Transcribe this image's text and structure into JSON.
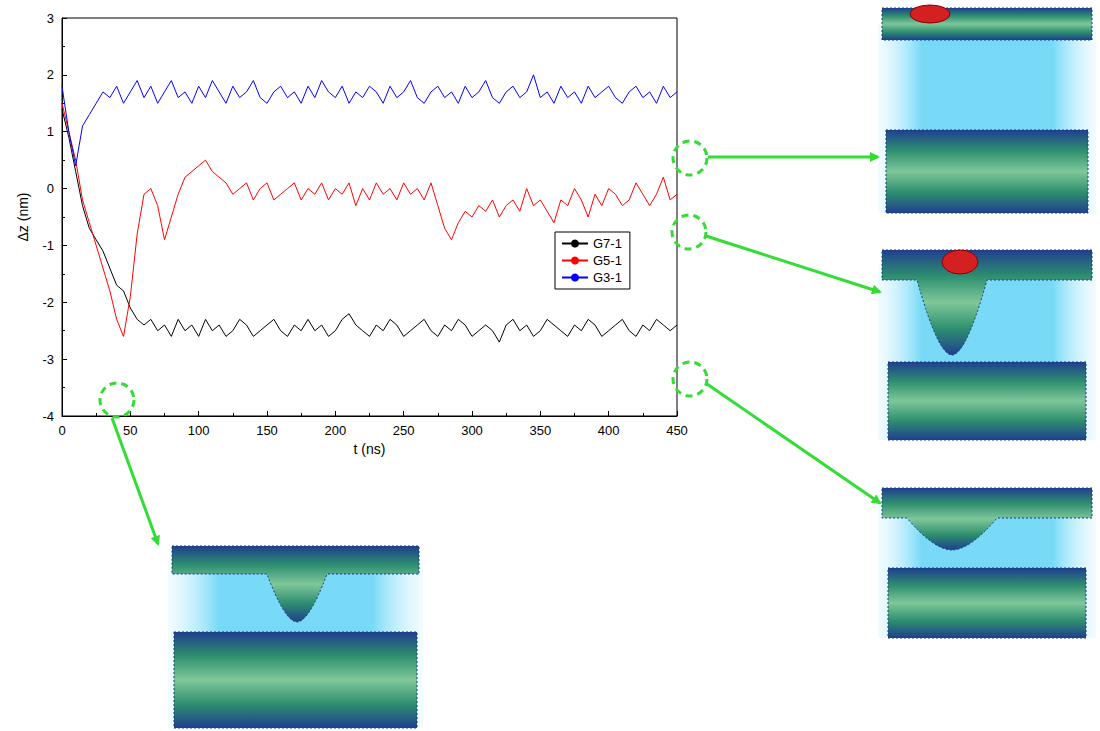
{
  "chart_data": {
    "type": "line",
    "x_label": "t (ns)",
    "y_label": "Δz (nm)",
    "xlim": [
      0,
      450
    ],
    "xticks": [
      0,
      50,
      100,
      150,
      200,
      250,
      300,
      350,
      400,
      450
    ],
    "ylim": [
      -4,
      3
    ],
    "yticks": [
      -4,
      -3,
      -2,
      -1,
      0,
      1,
      2,
      3
    ],
    "grid": false,
    "legend": "right",
    "x": [
      0,
      5,
      10,
      15,
      20,
      25,
      30,
      35,
      40,
      45,
      50,
      55,
      60,
      65,
      70,
      75,
      80,
      85,
      90,
      95,
      100,
      105,
      110,
      115,
      120,
      125,
      130,
      135,
      140,
      145,
      150,
      155,
      160,
      165,
      170,
      175,
      180,
      185,
      190,
      195,
      200,
      205,
      210,
      215,
      220,
      225,
      230,
      235,
      240,
      245,
      250,
      255,
      260,
      265,
      270,
      275,
      280,
      285,
      290,
      295,
      300,
      305,
      310,
      315,
      320,
      325,
      330,
      335,
      340,
      345,
      350,
      355,
      360,
      365,
      370,
      375,
      380,
      385,
      390,
      395,
      400,
      405,
      410,
      415,
      420,
      425,
      430,
      435,
      440,
      445,
      450
    ],
    "series": [
      {
        "name": "G7-1",
        "color": "#000000",
        "values": [
          1.4,
          0.9,
          0.3,
          -0.3,
          -0.7,
          -0.9,
          -1.1,
          -1.4,
          -1.7,
          -1.8,
          -2.1,
          -2.3,
          -2.4,
          -2.3,
          -2.5,
          -2.4,
          -2.6,
          -2.3,
          -2.5,
          -2.4,
          -2.6,
          -2.3,
          -2.5,
          -2.4,
          -2.6,
          -2.5,
          -2.3,
          -2.4,
          -2.6,
          -2.5,
          -2.4,
          -2.3,
          -2.5,
          -2.6,
          -2.4,
          -2.5,
          -2.3,
          -2.5,
          -2.4,
          -2.6,
          -2.5,
          -2.3,
          -2.2,
          -2.4,
          -2.5,
          -2.6,
          -2.4,
          -2.5,
          -2.3,
          -2.4,
          -2.6,
          -2.5,
          -2.4,
          -2.3,
          -2.5,
          -2.6,
          -2.4,
          -2.5,
          -2.3,
          -2.4,
          -2.6,
          -2.5,
          -2.4,
          -2.5,
          -2.7,
          -2.4,
          -2.3,
          -2.5,
          -2.4,
          -2.6,
          -2.5,
          -2.3,
          -2.4,
          -2.5,
          -2.6,
          -2.4,
          -2.5,
          -2.3,
          -2.4,
          -2.6,
          -2.5,
          -2.4,
          -2.3,
          -2.5,
          -2.6,
          -2.4,
          -2.5,
          -2.3,
          -2.4,
          -2.5,
          -2.4
        ]
      },
      {
        "name": "G5-1",
        "color": "#ff0000",
        "values": [
          1.5,
          1.0,
          0.5,
          -0.2,
          -0.6,
          -1.0,
          -1.4,
          -1.8,
          -2.3,
          -2.6,
          -1.9,
          -0.8,
          -0.1,
          0.0,
          -0.3,
          -0.9,
          -0.5,
          -0.1,
          0.2,
          0.3,
          0.4,
          0.5,
          0.3,
          0.2,
          0.1,
          -0.1,
          0.0,
          0.1,
          -0.2,
          0.0,
          0.1,
          -0.2,
          -0.1,
          0.0,
          0.1,
          -0.2,
          0.0,
          -0.1,
          0.1,
          -0.2,
          0.0,
          -0.1,
          0.1,
          -0.3,
          0.0,
          -0.2,
          0.1,
          -0.1,
          0.0,
          -0.2,
          0.1,
          -0.1,
          0.0,
          -0.2,
          0.1,
          -0.3,
          -0.7,
          -0.9,
          -0.6,
          -0.4,
          -0.5,
          -0.3,
          -0.4,
          -0.2,
          -0.5,
          -0.3,
          -0.2,
          -0.4,
          0.0,
          -0.3,
          -0.2,
          -0.4,
          -0.6,
          -0.2,
          -0.3,
          0.0,
          -0.2,
          -0.5,
          -0.1,
          -0.3,
          0.0,
          -0.1,
          -0.3,
          -0.2,
          0.1,
          -0.1,
          -0.3,
          -0.1,
          0.2,
          -0.2,
          -0.1
        ]
      },
      {
        "name": "G3-1",
        "color": "#0000ff",
        "values": [
          1.8,
          1.0,
          0.4,
          1.1,
          1.3,
          1.5,
          1.7,
          1.6,
          1.8,
          1.5,
          1.7,
          1.9,
          1.6,
          1.8,
          1.5,
          1.7,
          1.9,
          1.6,
          1.7,
          1.5,
          1.8,
          1.6,
          1.9,
          1.7,
          1.5,
          1.8,
          1.6,
          1.7,
          1.9,
          1.6,
          1.5,
          1.7,
          1.8,
          1.6,
          1.7,
          1.5,
          1.8,
          1.6,
          1.9,
          1.7,
          1.6,
          1.8,
          1.5,
          1.7,
          1.6,
          1.8,
          1.7,
          1.5,
          1.8,
          1.6,
          1.7,
          1.9,
          1.6,
          1.5,
          1.7,
          1.8,
          1.6,
          1.7,
          1.5,
          1.8,
          1.6,
          1.7,
          1.9,
          1.6,
          1.5,
          1.7,
          1.8,
          1.6,
          1.7,
          2.0,
          1.6,
          1.7,
          1.5,
          1.8,
          1.6,
          1.7,
          1.5,
          1.8,
          1.6,
          1.7,
          1.8,
          1.6,
          1.5,
          1.7,
          1.8,
          1.6,
          1.7,
          1.5,
          1.8,
          1.6,
          1.7
        ]
      }
    ]
  }
}
